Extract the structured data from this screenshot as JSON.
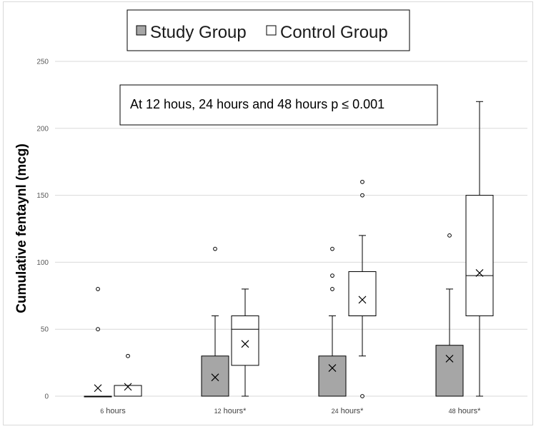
{
  "chart_data": {
    "type": "boxplot",
    "ylabel": "Cumulative fentaynl (mcg)",
    "ylim": [
      0,
      250
    ],
    "yticks": [
      0,
      50,
      100,
      150,
      200,
      250
    ],
    "grid": true,
    "legend_position": "top-center",
    "annotation": "At 12 hous, 24 hours and 48 hours p ≤ 0.001",
    "categories": [
      {
        "main": "6",
        "suffix": " hours"
      },
      {
        "main": "12",
        "suffix": " hours*"
      },
      {
        "main": "24",
        "suffix": " hours*"
      },
      {
        "main": "48",
        "suffix": " hours*"
      }
    ],
    "series": [
      {
        "name": "Study Group",
        "color": "#a6a6a6",
        "boxes": [
          {
            "min": 0,
            "q1": 0,
            "median": 0,
            "q3": 0,
            "max": 0,
            "mean": 6,
            "outliers": [
              50,
              80
            ]
          },
          {
            "min": 0,
            "q1": 0,
            "median": 0,
            "q3": 30,
            "max": 60,
            "mean": 14,
            "outliers": [
              110
            ]
          },
          {
            "min": 0,
            "q1": 0,
            "median": 0,
            "q3": 30,
            "max": 60,
            "mean": 21,
            "outliers": [
              80,
              90,
              110
            ]
          },
          {
            "min": 0,
            "q1": 0,
            "median": 0,
            "q3": 38,
            "max": 80,
            "mean": 28,
            "outliers": [
              120
            ]
          }
        ]
      },
      {
        "name": "Control Group",
        "color": "#ffffff",
        "boxes": [
          {
            "min": 0,
            "q1": 0,
            "median": 0,
            "q3": 8,
            "max": 8,
            "mean": 7,
            "outliers": [
              30
            ]
          },
          {
            "min": 0,
            "q1": 23,
            "median": 50,
            "q3": 60,
            "max": 80,
            "mean": 39,
            "outliers": []
          },
          {
            "min": 30,
            "q1": 60,
            "median": 60,
            "q3": 93,
            "max": 120,
            "mean": 72,
            "outliers": [
              0,
              150,
              160
            ]
          },
          {
            "min": 0,
            "q1": 60,
            "median": 90,
            "q3": 150,
            "max": 220,
            "mean": 92,
            "outliers": []
          }
        ]
      }
    ]
  }
}
